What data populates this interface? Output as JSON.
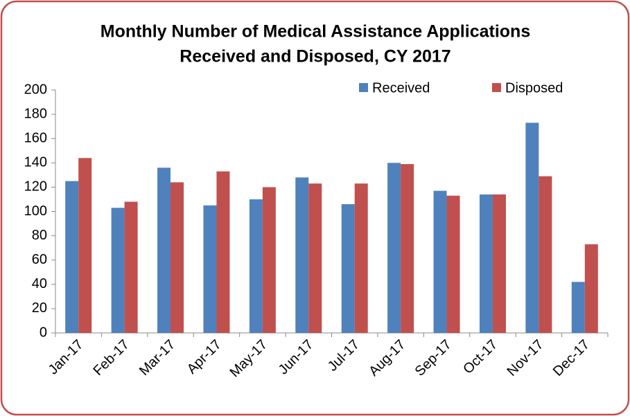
{
  "chart_data": {
    "type": "bar",
    "title": [
      "Monthly Number of Medical Assistance Applications",
      "Received and Disposed, CY 2017"
    ],
    "categories": [
      "Jan-17",
      "Feb-17",
      "Mar-17",
      "Apr-17",
      "May-17",
      "Jun-17",
      "Jul-17",
      "Aug-17",
      "Sep-17",
      "Oct-17",
      "Nov-17",
      "Dec-17"
    ],
    "series": [
      {
        "name": "Received",
        "color": "#4f81bd",
        "values": [
          125,
          103,
          136,
          105,
          110,
          128,
          106,
          140,
          117,
          114,
          173,
          42
        ]
      },
      {
        "name": "Disposed",
        "color": "#c0504d",
        "values": [
          144,
          108,
          124,
          133,
          120,
          123,
          123,
          139,
          113,
          114,
          129,
          73
        ]
      }
    ],
    "ylim": [
      0,
      200
    ],
    "yticks": [
      0,
      20,
      40,
      60,
      80,
      100,
      120,
      140,
      160,
      180,
      200
    ],
    "legend": "top-right"
  }
}
